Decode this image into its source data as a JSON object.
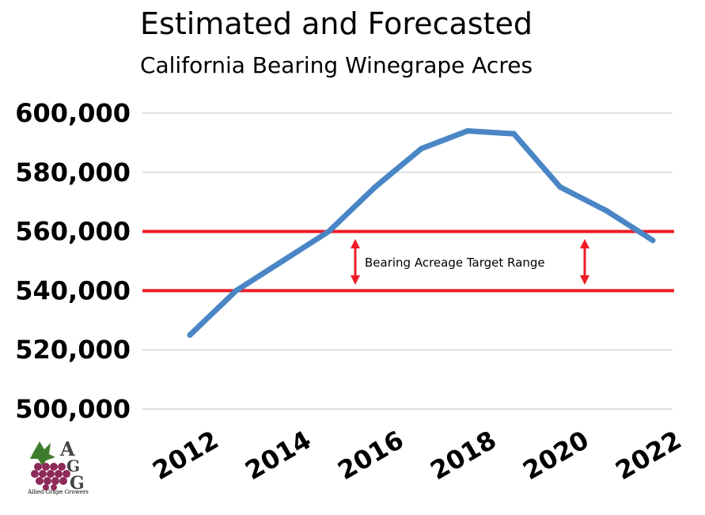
{
  "chart_data": {
    "type": "line",
    "title": "Estimated and Forecasted",
    "subtitle": "California Bearing Winegrape Acres",
    "xlabel": "",
    "ylabel": "",
    "x": [
      2012,
      2013,
      2014,
      2015,
      2016,
      2017,
      2018,
      2019,
      2020,
      2021,
      2022
    ],
    "x_tick_labels": [
      "2012",
      "2014",
      "2016",
      "2018",
      "2020",
      "2022"
    ],
    "y_tick_labels": [
      "600,000",
      "580,000",
      "560,000",
      "540,000",
      "520,000",
      "500,000"
    ],
    "ylim": [
      500000,
      600000
    ],
    "series": [
      {
        "name": "",
        "color": "#4a86c5",
        "values": [
          525000,
          540000,
          550000,
          560000,
          575000,
          588000,
          594000,
          593000,
          575000,
          567000,
          557000
        ]
      }
    ],
    "reference_lines": [
      {
        "y": 560000,
        "color": "#ee1c25"
      },
      {
        "y": 540000,
        "color": "#ee1c25"
      }
    ],
    "annotation": "Bearing Acreage Target Range",
    "grid": true,
    "legend": "none"
  },
  "logo": {
    "text": "Allied Grape Growers",
    "letters": [
      "A",
      "G",
      "G"
    ],
    "colors": {
      "grapes": "#8e2a5a",
      "leaves": "#3f7d2e"
    }
  }
}
